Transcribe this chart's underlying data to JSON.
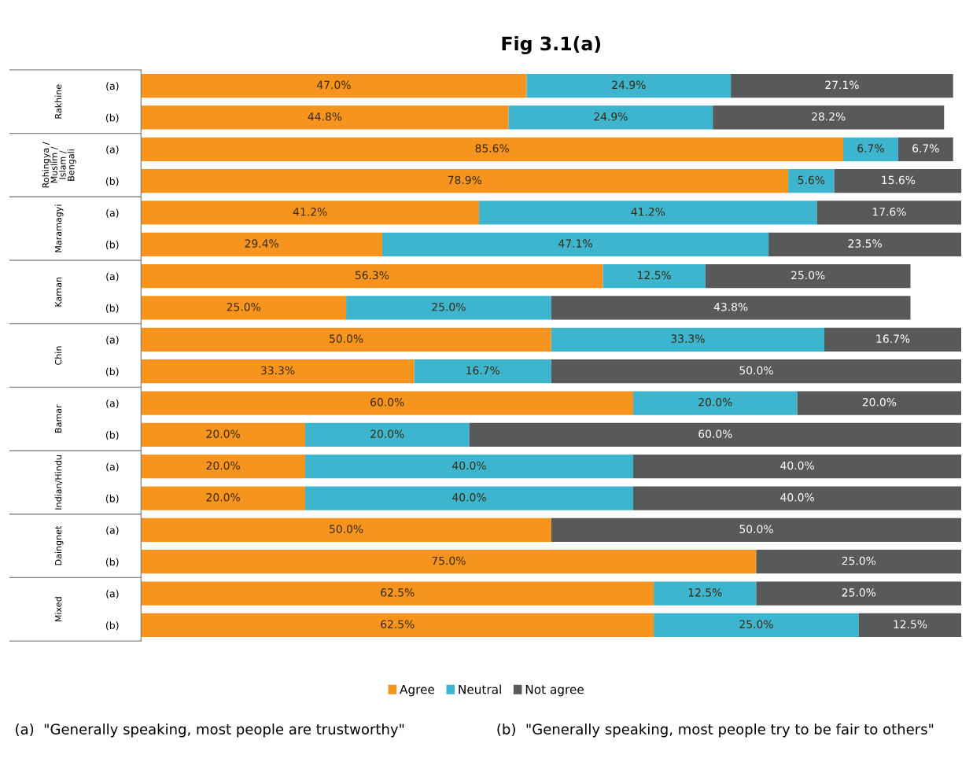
{
  "chart_data": {
    "type": "bar",
    "orientation": "horizontal",
    "stacked": true,
    "title": "Fig 3.1(a)",
    "categories": [
      "(a)",
      "(b)",
      "(a)",
      "(b)",
      "(a)",
      "(b)",
      "(a)",
      "(b)",
      "(a)",
      "(b)",
      "(a)",
      "(b)",
      "(a)",
      "(b)",
      "(a)",
      "(b)",
      "(a)",
      "(b)"
    ],
    "series": [
      {
        "name": "Agree",
        "color": "#f7941d",
        "values": [
          47.0,
          44.8,
          85.6,
          78.9,
          41.2,
          29.4,
          56.3,
          25.0,
          50.0,
          33.3,
          60.0,
          20.0,
          20.0,
          20.0,
          50.0,
          75.0,
          62.5,
          62.5
        ],
        "value_labels": [
          "47.0%",
          "44.8%",
          "85.6%",
          "78.9%",
          "41.2%",
          "29.4%",
          "56.3%",
          "25.0%",
          "50.0%",
          "33.3%",
          "60.0%",
          "20.0%",
          "20.0%",
          "20.0%",
          "50.0%",
          "75.0%",
          "62.5%",
          "62.5%"
        ]
      },
      {
        "name": "Neutral",
        "color": "#3db5cf",
        "values": [
          24.9,
          24.9,
          6.7,
          5.6,
          41.2,
          47.1,
          12.5,
          25.0,
          33.3,
          16.7,
          20.0,
          20.0,
          40.0,
          40.0,
          null,
          null,
          12.5,
          25.0
        ],
        "value_labels": [
          "24.9%",
          "24.9%",
          "6.7%",
          "5.6%",
          "41.2%",
          "47.1%",
          "12.5%",
          "25.0%",
          "33.3%",
          "16.7%",
          "20.0%",
          "20.0%",
          "40.0%",
          "40.0%",
          null,
          null,
          "12.5%",
          "25.0%"
        ]
      },
      {
        "name": "Not agree",
        "color": "#58595b",
        "values": [
          27.1,
          28.2,
          6.7,
          15.6,
          17.6,
          23.5,
          25.0,
          43.8,
          16.7,
          50.0,
          20.0,
          60.0,
          40.0,
          40.0,
          50.0,
          25.0,
          25.0,
          12.5
        ],
        "value_labels": [
          "27.1%",
          "28.2%",
          "6.7%",
          "15.6%",
          "17.6%",
          "23.5%",
          "25.0%",
          "43.8%",
          "16.7%",
          "50.0%",
          "20.0%",
          "60.0%",
          "40.0%",
          "40.0%",
          "50.0%",
          "25.0%",
          "25.0%",
          "12.5%"
        ]
      }
    ],
    "xlim": [
      0,
      100
    ],
    "tick_labels": "y",
    "grid": false,
    "legend": "bottom",
    "annotations": [
      "Rakhine",
      "Rohingya /\nMuslim /\nIslam /\nBengali",
      "Maramagyi",
      "Kaman",
      "Chin",
      "Bamar",
      "Indian/Hindu",
      "Daingnet",
      "Mixed",
      "(a)  \"Generally speaking, most people are trustworthy\"",
      "(b)  \"Generally speaking, most people try to be fair to others\""
    ]
  }
}
